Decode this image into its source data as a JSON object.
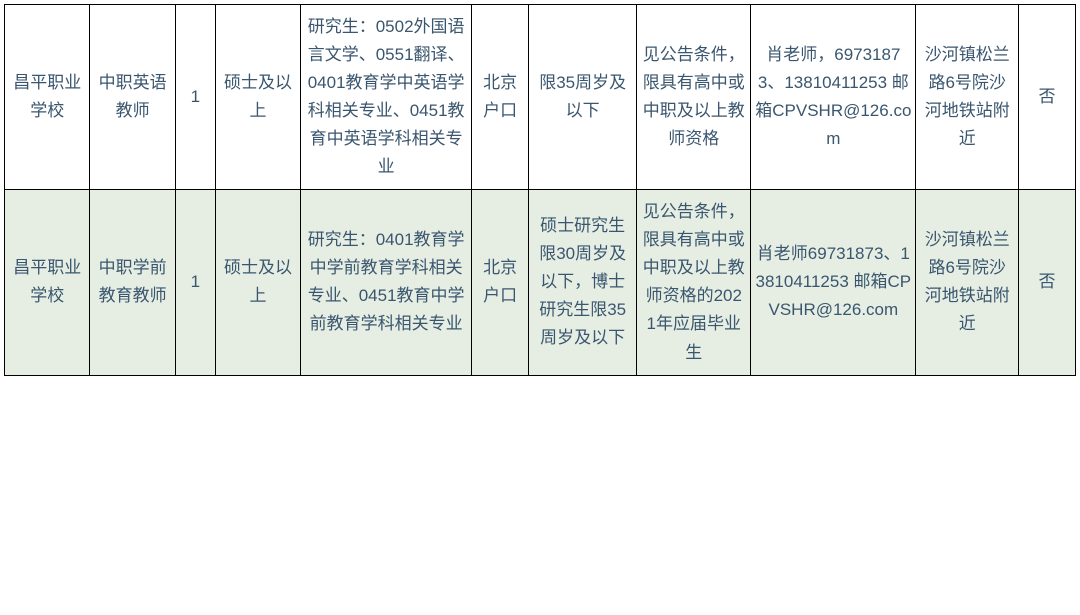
{
  "table": {
    "background_color_even": "#ffffff",
    "background_color_odd": "#e6eee4",
    "border_color": "#000000",
    "text_color": "#3a566e",
    "font_size": 17,
    "line_height": 1.65,
    "column_widths_pct": [
      7.5,
      7.5,
      3.5,
      7.5,
      15,
      5,
      9.5,
      10,
      14.5,
      9,
      5
    ],
    "rows": [
      {
        "cells": [
          "昌平职业学校",
          "中职英语教师",
          "1",
          "硕士及以上",
          "研究生：0502外国语言文学、0551翻译、0401教育学中英语学科相关专业、0451教育中英语学科相关专业",
          "北京户口",
          "限35周岁及以下",
          "见公告条件，限具有高中或中职及以上教师资格",
          "肖老师，69731873、13810411253 邮箱CPVSHR@126.com",
          "沙河镇松兰路6号院沙河地铁站附近",
          "否"
        ]
      },
      {
        "cells": [
          "昌平职业学校",
          "中职学前教育教师",
          "1",
          "硕士及以上",
          "研究生：0401教育学中学前教育学科相关专业、0451教育中学前教育学科相关专业",
          "北京户口",
          "硕士研究生限30周岁及以下，博士研究生限35周岁及以下",
          "见公告条件，限具有高中或中职及以上教师资格的2021年应届毕业生",
          "肖老师69731873、13810411253 邮箱CPVSHR@126.com",
          "沙河镇松兰路6号院沙河地铁站附近",
          "否"
        ]
      }
    ]
  }
}
